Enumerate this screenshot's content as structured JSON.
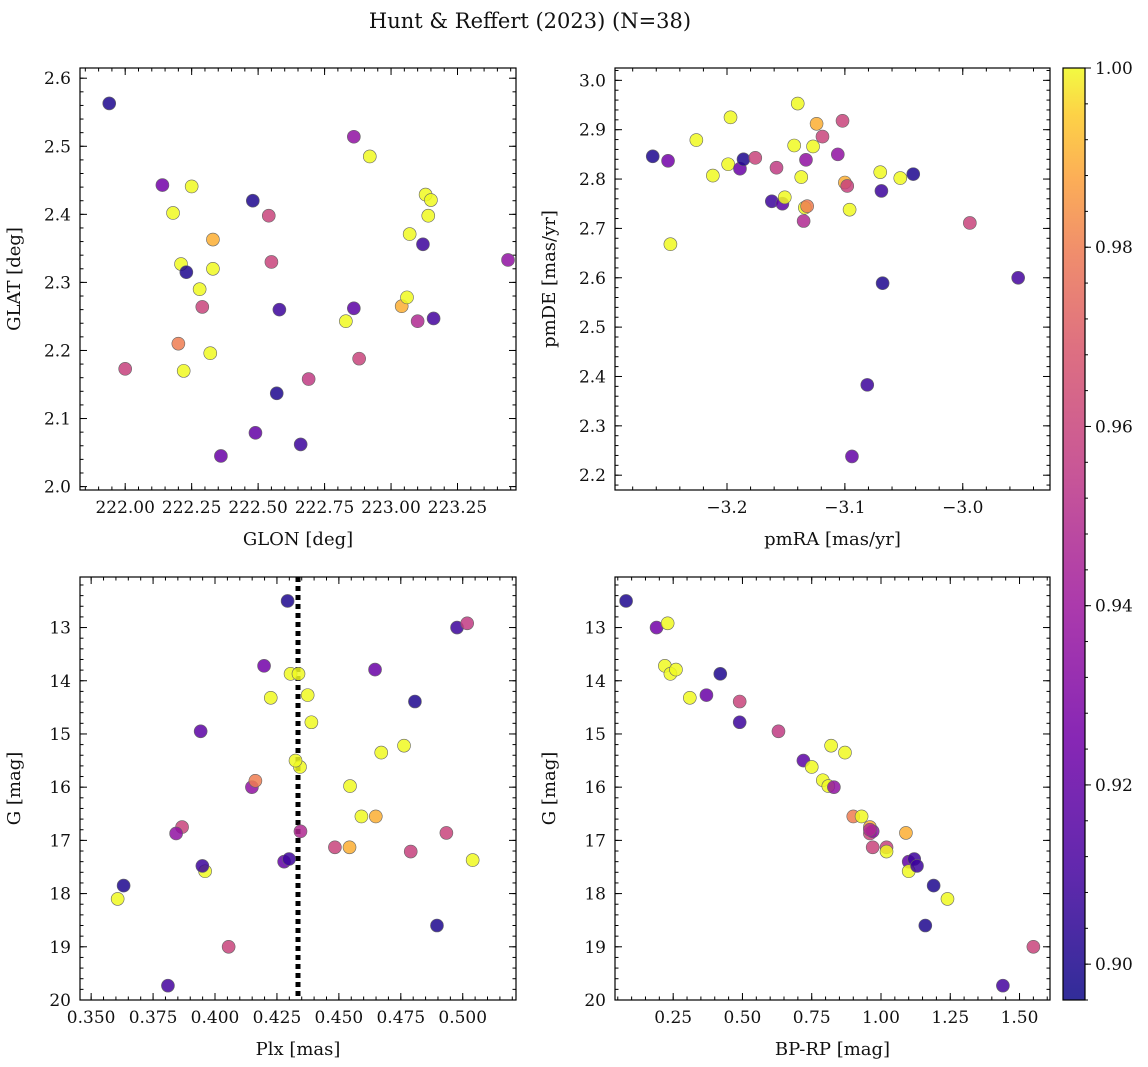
{
  "chart_data": {
    "title": "Hunt & Reffert (2023) (N=38)",
    "colorbar": {
      "vmin": 0.896,
      "vmax": 1.0,
      "ticks": [
        0.9,
        0.92,
        0.94,
        0.96,
        0.98,
        1.0
      ],
      "tick_labels": [
        "0.90",
        "0.92",
        "0.94",
        "0.96",
        "0.98",
        "1.00"
      ],
      "colormap": "plasma"
    },
    "panels": [
      {
        "type": "scatter",
        "xlabel": "GLON [deg]",
        "ylabel": "GLAT [deg]",
        "xlim": [
          221.83,
          223.47
        ],
        "ylim": [
          1.995,
          2.615
        ],
        "invert_y": false,
        "xticks": [
          222.0,
          222.25,
          222.5,
          222.75,
          223.0,
          223.25
        ],
        "xtick_labels": [
          "222.00",
          "222.25",
          "222.50",
          "222.75",
          "223.00",
          "223.25"
        ],
        "yticks": [
          2.0,
          2.1,
          2.2,
          2.3,
          2.4,
          2.5,
          2.6
        ],
        "ytick_labels": [
          "2.0",
          "2.1",
          "2.2",
          "2.3",
          "2.4",
          "2.5",
          "2.6"
        ],
        "x": [
          221.94,
          222.14,
          222.18,
          222.21,
          222.25,
          222.28,
          222.33,
          222.36,
          222.48,
          222.54,
          222.58,
          222.69,
          222.86,
          222.92,
          223.07,
          223.13,
          223.14,
          223.15,
          223.44,
          222.2,
          222.22,
          222.33,
          222.55,
          222.86,
          222.88,
          223.04,
          222.0,
          222.32,
          222.49,
          222.66,
          222.83,
          223.12,
          222.57,
          223.06,
          222.23,
          222.29,
          223.16,
          223.1
        ],
        "y": [
          2.563,
          2.443,
          2.402,
          2.327,
          2.441,
          2.29,
          2.32,
          2.045,
          2.42,
          2.398,
          2.26,
          2.158,
          2.262,
          2.485,
          2.371,
          2.429,
          2.398,
          2.421,
          2.333,
          2.21,
          2.17,
          2.363,
          2.33,
          2.514,
          2.188,
          2.265,
          2.173,
          2.196,
          2.079,
          2.062,
          2.243,
          2.356,
          2.137,
          2.278,
          2.315,
          2.264,
          2.247,
          2.243
        ]
      },
      {
        "type": "scatter",
        "xlabel": "pmRA [mas/yr]",
        "ylabel": "pmDE [mas/yr]",
        "xlim": [
          -3.295,
          -2.926
        ],
        "ylim": [
          2.17,
          3.025
        ],
        "invert_y": false,
        "xticks": [
          -3.2,
          -3.1,
          -3.0
        ],
        "xtick_labels": [
          "−3.2",
          "−3.1",
          "−3.0"
        ],
        "yticks": [
          2.2,
          2.3,
          2.4,
          2.5,
          2.6,
          2.7,
          2.8,
          2.9,
          3.0
        ],
        "ytick_labels": [
          "2.2",
          "2.3",
          "2.4",
          "2.5",
          "2.6",
          "2.7",
          "2.8",
          "2.9",
          "3.0"
        ],
        "x": [
          -3.263,
          -3.25,
          -3.248,
          -3.226,
          -3.212,
          -3.199,
          -3.197,
          -3.189,
          -3.186,
          -3.176,
          -3.162,
          -3.158,
          -3.153,
          -3.151,
          -3.143,
          -3.14,
          -3.137,
          -3.134,
          -3.133,
          -3.132,
          -3.127,
          -3.124,
          -3.119,
          -3.106,
          -3.102,
          -3.1,
          -3.098,
          -3.096,
          -3.094,
          -3.081,
          -3.07,
          -3.069,
          -3.068,
          -3.053,
          -3.042,
          -2.994,
          -2.953,
          -3.135
        ],
        "y": [
          2.846,
          2.837,
          2.668,
          2.879,
          2.807,
          2.83,
          2.925,
          2.821,
          2.84,
          2.843,
          2.755,
          2.823,
          2.75,
          2.763,
          2.868,
          2.953,
          2.804,
          2.742,
          2.839,
          2.745,
          2.866,
          2.912,
          2.886,
          2.85,
          2.918,
          2.793,
          2.786,
          2.738,
          2.238,
          2.383,
          2.814,
          2.776,
          2.589,
          2.802,
          2.81,
          2.711,
          2.6,
          2.715
        ]
      },
      {
        "type": "scatter",
        "xlabel": "Plx [mas]",
        "ylabel": "G [mag]",
        "xlim": [
          0.3455,
          0.5215
        ],
        "ylim": [
          12.05,
          20.0
        ],
        "invert_y": true,
        "vline": 0.4335,
        "xticks": [
          0.35,
          0.375,
          0.4,
          0.425,
          0.45,
          0.475,
          0.5
        ],
        "xtick_labels": [
          "0.350",
          "0.375",
          "0.400",
          "0.425",
          "0.450",
          "0.475",
          "0.500"
        ],
        "yticks": [
          13,
          14,
          15,
          16,
          17,
          18,
          19,
          20
        ],
        "ytick_labels": [
          "13",
          "14",
          "15",
          "16",
          "17",
          "18",
          "19",
          "20"
        ],
        "x": [
          0.4293,
          0.4198,
          0.4305,
          0.4337,
          0.4225,
          0.4374,
          0.4389,
          0.4646,
          0.4807,
          0.4934,
          0.4977,
          0.5018,
          0.3942,
          0.4343,
          0.4325,
          0.4671,
          0.4763,
          0.4545,
          0.4149,
          0.4163,
          0.4591,
          0.4649,
          0.3867,
          0.3843,
          0.4484,
          0.4543,
          0.479,
          0.504,
          0.4279,
          0.4299,
          0.396,
          0.3949,
          0.3631,
          0.3607,
          0.4896,
          0.4055,
          0.381,
          0.4345
        ],
        "y": [
          12.5,
          13.72,
          13.87,
          13.87,
          14.32,
          14.27,
          14.78,
          13.79,
          14.39,
          16.86,
          13.0,
          12.92,
          14.95,
          15.62,
          15.5,
          15.35,
          15.22,
          15.98,
          16.0,
          15.88,
          16.55,
          16.55,
          16.75,
          16.87,
          17.13,
          17.13,
          17.21,
          17.37,
          17.4,
          17.35,
          17.58,
          17.48,
          17.85,
          18.1,
          18.6,
          19.0,
          19.73,
          16.83
        ]
      },
      {
        "type": "scatter",
        "xlabel": "BP-RP [mag]",
        "ylabel": "G [mag]",
        "xlim": [
          0.04,
          1.61
        ],
        "ylim": [
          12.05,
          20.0
        ],
        "invert_y": true,
        "xticks": [
          0.25,
          0.5,
          0.75,
          1.0,
          1.25,
          1.5
        ],
        "xtick_labels": [
          "0.25",
          "0.50",
          "0.75",
          "1.00",
          "1.25",
          "1.50"
        ],
        "yticks": [
          13,
          14,
          15,
          16,
          17,
          18,
          19,
          20
        ],
        "ytick_labels": [
          "13",
          "14",
          "15",
          "16",
          "17",
          "18",
          "19",
          "20"
        ],
        "x": [
          0.08,
          0.19,
          0.23,
          0.22,
          0.24,
          0.26,
          0.31,
          0.37,
          0.42,
          0.49,
          0.49,
          0.63,
          0.72,
          0.75,
          0.79,
          0.82,
          0.87,
          0.81,
          0.83,
          0.9,
          0.93,
          0.96,
          0.96,
          0.97,
          0.97,
          1.09,
          1.02,
          1.02,
          1.1,
          1.12,
          1.1,
          1.13,
          1.19,
          1.24,
          1.16,
          1.55,
          1.44,
          0.96
        ],
        "y": [
          12.5,
          13.0,
          12.92,
          13.72,
          13.87,
          13.79,
          14.32,
          14.27,
          13.87,
          14.39,
          14.78,
          14.95,
          15.5,
          15.62,
          15.87,
          15.22,
          15.35,
          15.98,
          16.0,
          16.55,
          16.55,
          16.75,
          16.87,
          16.83,
          17.13,
          16.86,
          17.13,
          17.21,
          17.4,
          17.35,
          17.58,
          17.48,
          17.85,
          18.1,
          18.6,
          19.0,
          19.73,
          16.8
        ]
      }
    ],
    "c": [
      0.9,
      0.925,
      1.0,
      1.0,
      1.0,
      1.0,
      1.0,
      0.922,
      0.9,
      0.96,
      0.908,
      0.956,
      0.918,
      1.0,
      1.0,
      1.0,
      1.0,
      1.0,
      0.935,
      0.98,
      1.0,
      0.99,
      0.96,
      0.935,
      0.96,
      0.99,
      0.959,
      1.0,
      0.92,
      0.908,
      1.0,
      0.908,
      0.9,
      1.0,
      0.9,
      0.96,
      0.91,
      0.948
    ]
  }
}
